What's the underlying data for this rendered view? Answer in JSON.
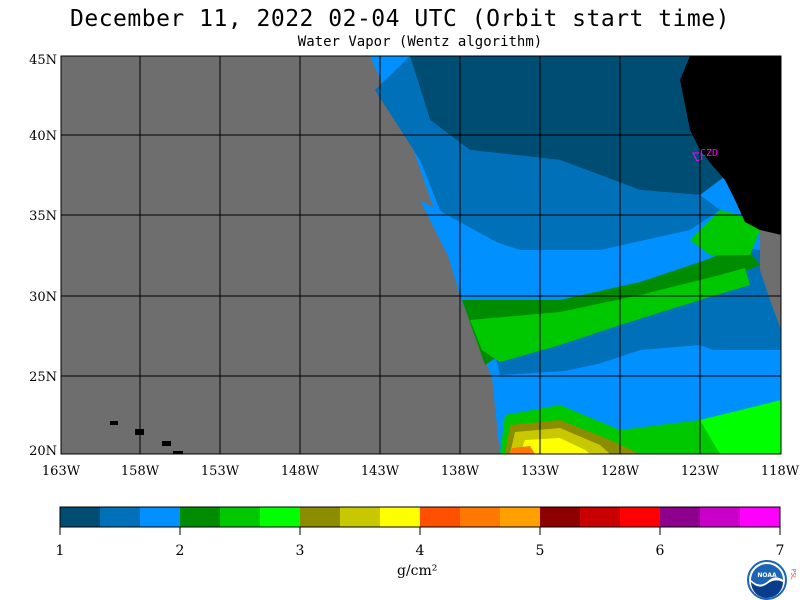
{
  "header": {
    "title": "December 11, 2022  02-04 UTC  (Orbit start time)",
    "subtitle": "Water Vapor (Wentz algorithm)"
  },
  "map": {
    "lat_labels": [
      "45N",
      "40N",
      "35N",
      "30N",
      "25N",
      "20N"
    ],
    "lon_labels": [
      "163W",
      "158W",
      "153W",
      "148W",
      "143W",
      "138W",
      "133W",
      "128W",
      "123W",
      "118W"
    ],
    "station_label": "CZD",
    "colors": {
      "no_data": "#6e6e6e",
      "land": "#000000",
      "station": "#ff00ff"
    }
  },
  "colorbar": {
    "tick_labels": [
      "1",
      "2",
      "3",
      "4",
      "5",
      "6",
      "7"
    ],
    "unit": "g/cm²",
    "colors": [
      "#004d73",
      "#0070b8",
      "#0090ff",
      "#008c00",
      "#00c800",
      "#00ff00",
      "#8c8c00",
      "#c8c800",
      "#ffff00",
      "#ff5000",
      "#ff7800",
      "#ffa000",
      "#8c0000",
      "#c80000",
      "#ff0000",
      "#8c008c",
      "#c800c8",
      "#ff00ff"
    ]
  },
  "logo": {
    "text": "NOAA",
    "side_text": "PSL"
  }
}
